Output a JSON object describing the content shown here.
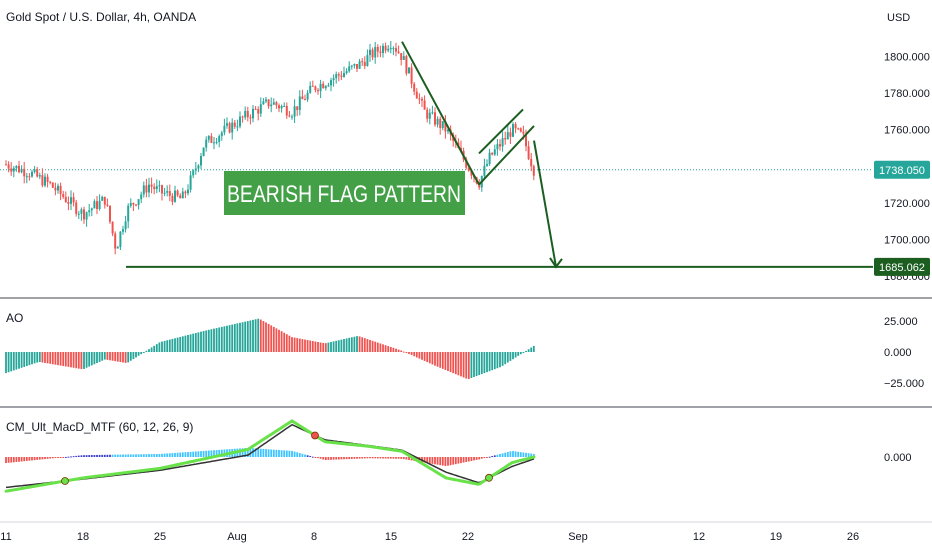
{
  "header": {
    "title": "Gold Spot / U.S. Dollar, 4h, OANDA",
    "currency": "USD"
  },
  "annotation": {
    "pattern_label": "BEARISH FLAG PATTERN",
    "current_price_tag": "1738.050",
    "target_price_tag": "1685.062"
  },
  "colors": {
    "up": "#26a69a",
    "down": "#ef5350",
    "drawing": "#1b5e20",
    "label_bg": "#43a047",
    "tag_current": "#26a69a",
    "tag_target": "#1b5e20",
    "macd_fast": "#69e24a",
    "macd_slow": "#333333",
    "macd_hist_pos1": "#40c4ff",
    "macd_hist_pos2": "#3d3dcc",
    "macd_hist_neg": "#ef5350"
  },
  "chart_data": [
    {
      "type": "candlestick",
      "title": "Gold Spot / U.S. Dollar, 4h, OANDA",
      "y_unit": "USD",
      "ylim": [
        1680,
        1820
      ],
      "y_ticks": [
        "1800.000",
        "1780.000",
        "1760.000",
        "1720.000",
        "1700.000",
        "1680.000"
      ],
      "x_ticks": [
        "11",
        "18",
        "25",
        "Aug",
        "8",
        "15",
        "22",
        "Sep",
        "12",
        "19",
        "26"
      ],
      "close_path": [
        [
          "11",
          1741
        ],
        [
          "13",
          1737
        ],
        [
          "15",
          1730
        ],
        [
          "18",
          1714
        ],
        [
          "20",
          1722
        ],
        [
          "21",
          1695
        ],
        [
          "22",
          1716
        ],
        [
          "24",
          1730
        ],
        [
          "25",
          1726
        ],
        [
          "27",
          1722
        ],
        [
          "28",
          1735
        ],
        [
          "29",
          1752
        ],
        [
          "Aug 1",
          1768
        ],
        [
          "Aug 3",
          1775
        ],
        [
          "Aug 5",
          1770
        ],
        [
          "Aug 7",
          1783
        ],
        [
          "Aug 9",
          1789
        ],
        [
          "Aug 11",
          1795
        ],
        [
          "Aug 12",
          1800
        ],
        [
          "Aug 14",
          1808
        ],
        [
          "Aug 15",
          1800
        ],
        [
          "Aug 17",
          1770
        ],
        [
          "Aug 19",
          1760
        ],
        [
          "Aug 21",
          1740
        ],
        [
          "Aug 22",
          1731
        ],
        [
          "Aug 23",
          1745
        ],
        [
          "Aug 25",
          1760
        ],
        [
          "Aug 26",
          1756
        ],
        [
          "Aug 27",
          1738
        ]
      ],
      "drawings": {
        "flagpole_from": [
          "Aug 15",
          1808
        ],
        "flagpole_to": [
          "Aug 22",
          1730
        ],
        "flag_upper_from": [
          "Aug 22",
          1747
        ],
        "flag_upper_to": [
          "Aug 26",
          1771
        ],
        "flag_lower_from": [
          "Aug 22",
          1730
        ],
        "flag_lower_to": [
          "Aug 27",
          1762
        ],
        "arrow_from": [
          "Aug 27",
          1754
        ],
        "arrow_to": [
          "Aug 29",
          1685.062
        ],
        "support_level": 1685.062
      },
      "price_tags": [
        1738.05,
        1685.062
      ]
    },
    {
      "type": "bar",
      "title": "AO",
      "ylim": [
        -30,
        30
      ],
      "y_ticks": [
        "25.000",
        "0.000",
        "−25.000"
      ],
      "x": [
        "11",
        "14",
        "18",
        "20",
        "22",
        "25",
        "29",
        "Aug 2",
        "Aug 5",
        "Aug 8",
        "Aug 11",
        "Aug 15",
        "Aug 18",
        "Aug 21",
        "Aug 24",
        "Aug 27"
      ],
      "values": [
        -17,
        -8,
        -14,
        -6,
        -9,
        8,
        17,
        27,
        12,
        7,
        13,
        1,
        -11,
        -22,
        -12,
        5
      ]
    },
    {
      "type": "line",
      "title": "CM_Ult_MacD_MTF (60, 12, 26, 9)",
      "y_ticks": [
        "0.000"
      ],
      "series": [],
      "x": [
        "11",
        "18",
        "25",
        "Aug 1",
        "Aug 5",
        "Aug 8",
        "Aug 12",
        "Aug 15",
        "Aug 19",
        "Aug 22",
        "Aug 25",
        "Aug 27"
      ],
      "macd": [
        -0.9,
        -0.55,
        -0.3,
        0.2,
        0.95,
        0.4,
        0.28,
        0.15,
        -0.55,
        -0.72,
        -0.15,
        0.0
      ],
      "signal": [
        -0.8,
        -0.58,
        -0.35,
        0.05,
        0.85,
        0.45,
        0.3,
        0.18,
        -0.4,
        -0.68,
        -0.25,
        -0.05
      ]
    }
  ]
}
